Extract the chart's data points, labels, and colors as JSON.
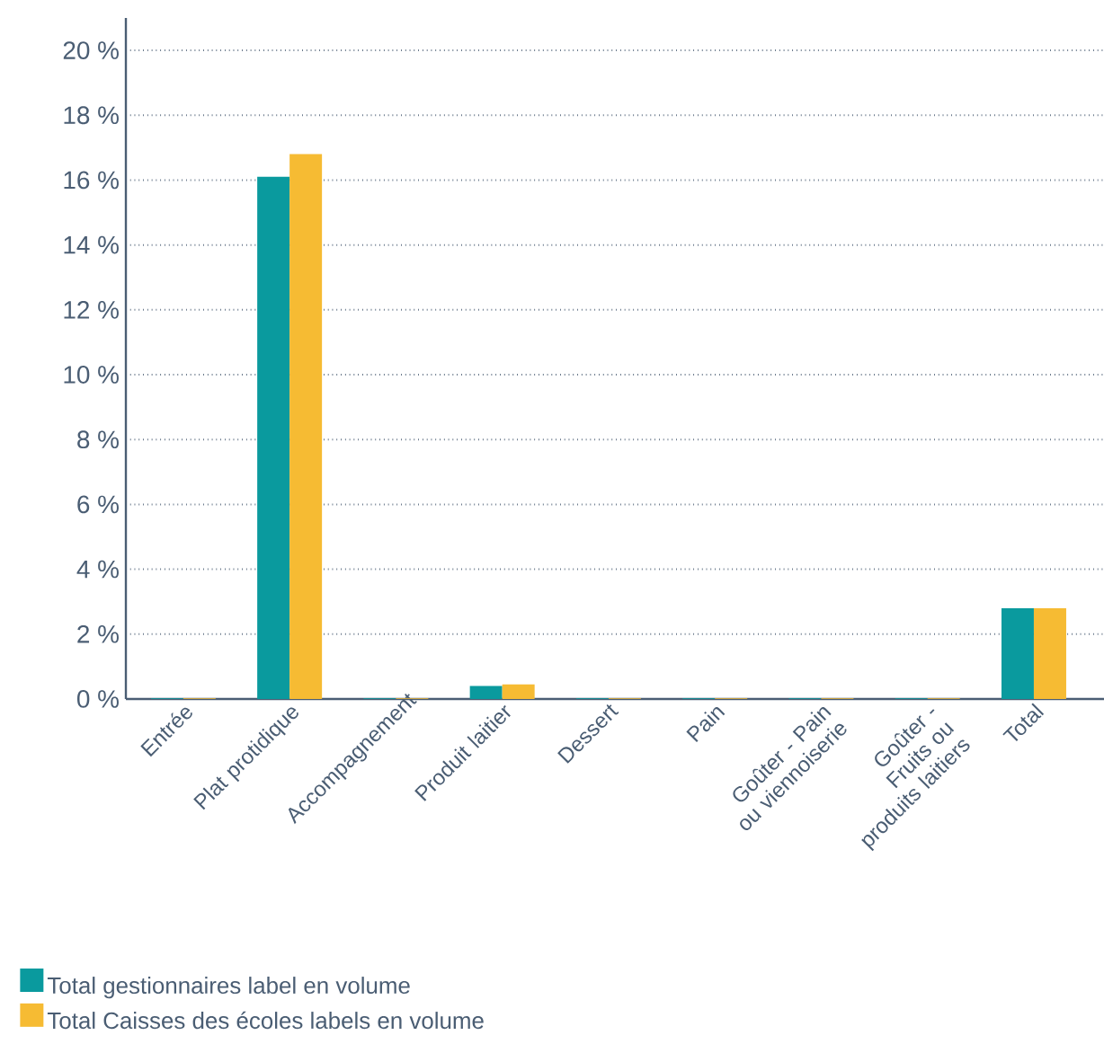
{
  "chart_data": {
    "type": "bar",
    "categories": [
      "Entrée",
      "Plat protidique",
      "Accompagnement",
      "Produit laitier",
      "Dessert",
      "Pain",
      "Goûter - Pain ou viennoiserie",
      "Goûter - Fruits ou produits laitiers",
      "Total"
    ],
    "series": [
      {
        "name": "Total gestionnaires label en volume",
        "color": "#0a9a9e",
        "values": [
          0.02,
          16.1,
          0.02,
          0.4,
          0.02,
          0.02,
          0.02,
          0.02,
          2.8
        ]
      },
      {
        "name": "Total Caisses des écoles labels en volume",
        "color": "#f6bb33",
        "values": [
          0.02,
          16.8,
          0.02,
          0.45,
          0.02,
          0.02,
          0.02,
          0.02,
          2.8
        ]
      }
    ],
    "ylim": [
      0,
      21
    ],
    "yticks": [
      {
        "value": 0,
        "label": "0 %"
      },
      {
        "value": 2,
        "label": "2 %"
      },
      {
        "value": 4,
        "label": "4 %"
      },
      {
        "value": 6,
        "label": "6 %"
      },
      {
        "value": 8,
        "label": "8 %"
      },
      {
        "value": 10,
        "label": "10 %"
      },
      {
        "value": 12,
        "label": "12 %"
      },
      {
        "value": 14,
        "label": "14 %"
      },
      {
        "value": 16,
        "label": "16 %"
      },
      {
        "value": 18,
        "label": "18 %"
      },
      {
        "value": 20,
        "label": "20 %"
      }
    ],
    "grid": "y",
    "legend": "bottom left"
  }
}
